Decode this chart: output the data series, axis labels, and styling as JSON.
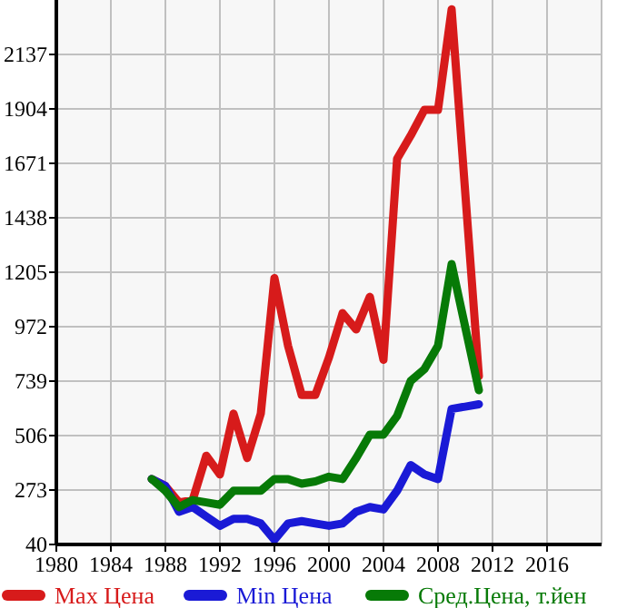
{
  "chart_data": {
    "type": "line",
    "xlim": [
      1980,
      2020
    ],
    "xticks": [
      1980,
      1984,
      1988,
      1992,
      1996,
      2000,
      2004,
      2008,
      2012,
      2016
    ],
    "ylim": [
      40,
      2370
    ],
    "yticks": [
      40,
      273,
      506,
      739,
      972,
      1205,
      1438,
      1671,
      1904,
      2137
    ],
    "grid": true,
    "legend": "bottom",
    "marker": "none",
    "line_style": "solid",
    "series": [
      {
        "name": "Max Цена",
        "color": "#d71b1b",
        "x": [
          1987,
          1988,
          1989,
          1990,
          1991,
          1992,
          1993,
          1994,
          1995,
          1996,
          1997,
          1998,
          1999,
          2000,
          2001,
          2002,
          2003,
          2004,
          2005,
          2006,
          2007,
          2008,
          2009,
          2011
        ],
        "values": [
          320,
          290,
          220,
          230,
          420,
          340,
          600,
          410,
          600,
          1180,
          890,
          680,
          680,
          840,
          1030,
          960,
          1100,
          830,
          1690,
          1790,
          1900,
          1900,
          2330,
          760
        ]
      },
      {
        "name": "Min Цена",
        "color": "#1a1ad6",
        "x": [
          1987,
          1988,
          1989,
          1990,
          1991,
          1992,
          1993,
          1994,
          1995,
          1996,
          1997,
          1998,
          1999,
          2000,
          2001,
          2002,
          2003,
          2004,
          2005,
          2006,
          2007,
          2008,
          2009,
          2010,
          2011
        ],
        "values": [
          320,
          290,
          180,
          200,
          160,
          120,
          150,
          150,
          130,
          60,
          130,
          140,
          130,
          120,
          130,
          180,
          200,
          190,
          270,
          380,
          340,
          320,
          620,
          630,
          640
        ]
      },
      {
        "name": "Сред.Цена, т.йен",
        "color": "#077a07",
        "x": [
          1987,
          1988,
          1989,
          1990,
          1991,
          1992,
          1993,
          1994,
          1995,
          1996,
          1997,
          1998,
          1999,
          2000,
          2001,
          2002,
          2003,
          2004,
          2005,
          2006,
          2007,
          2008,
          2009,
          2011
        ],
        "values": [
          320,
          270,
          200,
          230,
          220,
          210,
          270,
          270,
          270,
          320,
          320,
          300,
          310,
          330,
          320,
          410,
          510,
          510,
          590,
          740,
          790,
          890,
          1240,
          700
        ]
      }
    ]
  }
}
